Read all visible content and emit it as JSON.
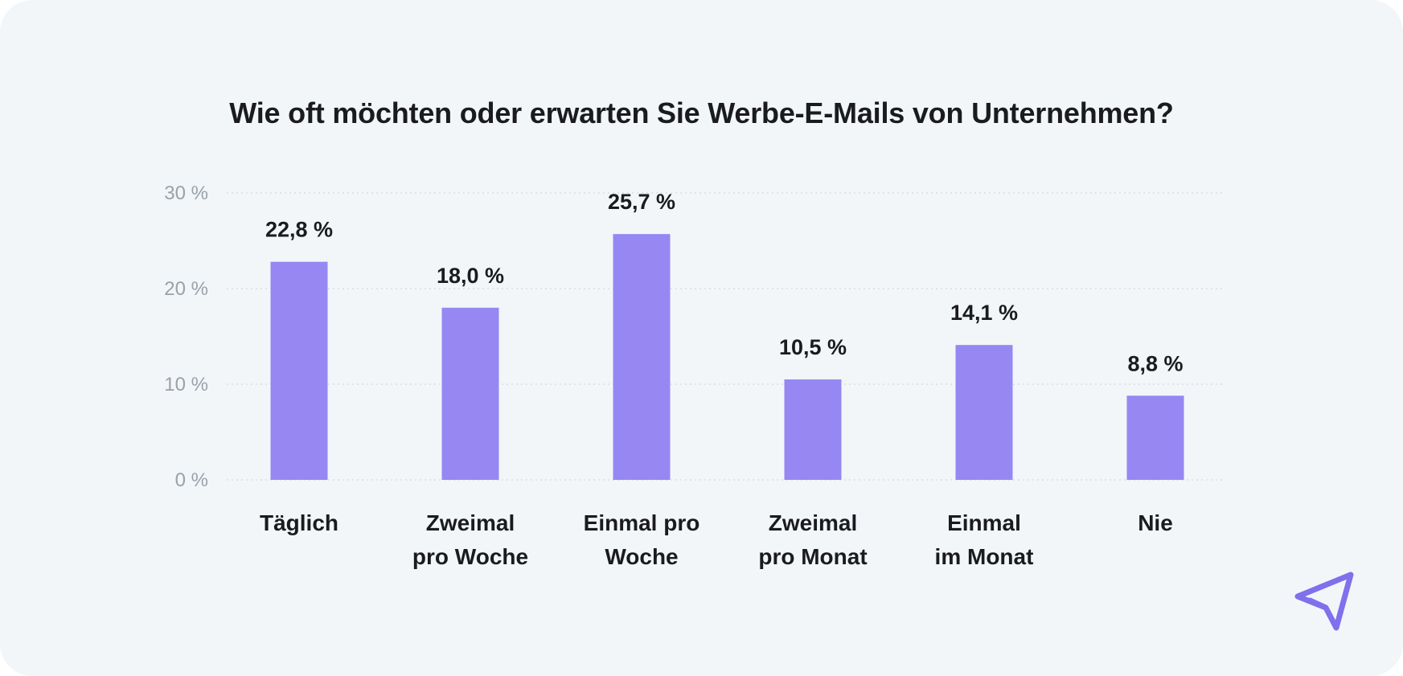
{
  "chart_data": {
    "type": "bar",
    "title": "Wie oft möchten oder erwarten Sie Werbe-E-Mails von Unternehmen?",
    "categories": [
      [
        "Täglich"
      ],
      [
        "Zweimal",
        "pro Woche"
      ],
      [
        "Einmal pro",
        "Woche"
      ],
      [
        "Zweimal",
        "pro Monat"
      ],
      [
        "Einmal",
        "im Monat"
      ],
      [
        "Nie"
      ]
    ],
    "values": [
      22.8,
      18.0,
      25.7,
      10.5,
      14.1,
      8.8
    ],
    "value_labels": [
      "22,8 %",
      "18,0 %",
      "25,7 %",
      "10,5 %",
      "14,1 %",
      "8,8 %"
    ],
    "y_ticks": [
      0,
      10,
      20,
      30
    ],
    "y_tick_labels": [
      "0 %",
      "10 %",
      "20 %",
      "30 %"
    ],
    "ylim": [
      0,
      30
    ],
    "xlabel": "",
    "ylabel": "",
    "grid": true,
    "bar_color": "#9787f3"
  },
  "colors": {
    "background": "#f2f6f9",
    "text": "#1b1b1f",
    "tick_text": "#9aa1a8",
    "grid": "#d9dde2",
    "accent": "#8070ec"
  },
  "logo": {
    "icon": "paper-plane-icon"
  }
}
